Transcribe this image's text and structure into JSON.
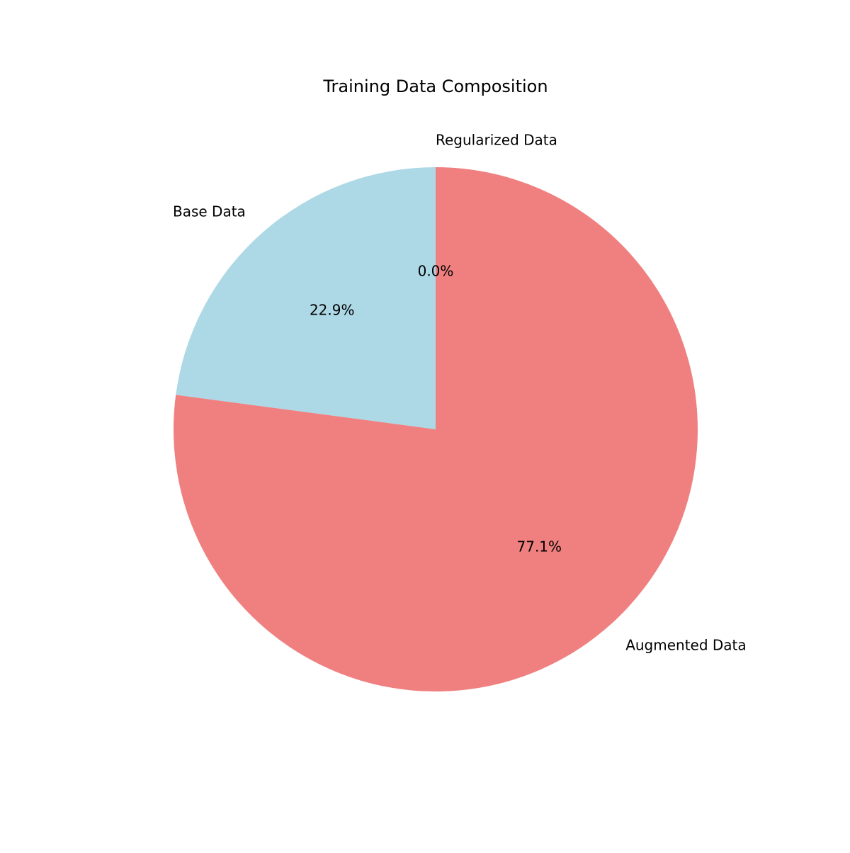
{
  "chart_data": {
    "type": "pie",
    "title": "Training Data Composition",
    "labels": [
      "Base Data",
      "Augmented Data",
      "Regularized Data"
    ],
    "values": [
      22.9,
      77.1,
      0.0
    ],
    "percent_labels": [
      "22.9%",
      "77.1%",
      "0.0%"
    ],
    "colors": [
      "#add8e6",
      "#f08080",
      "#90ee90"
    ],
    "start_angle_deg": 90,
    "direction": "counterclockwise",
    "legend": "none"
  }
}
